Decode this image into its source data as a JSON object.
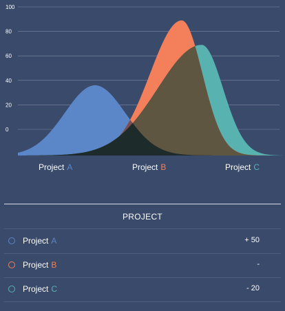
{
  "chart": {
    "y_ticks": [
      "100",
      "80",
      "60",
      "40",
      "20",
      "0"
    ],
    "series": [
      {
        "name": "Project",
        "letter": "A",
        "color": "#5b86c7",
        "peak_value": 36
      },
      {
        "name": "Project",
        "letter": "B",
        "color": "#f47f5b",
        "peak_value": 89
      },
      {
        "name": "Project",
        "letter": "C",
        "color": "#58b3b0",
        "peak_value": 69
      }
    ],
    "overlap_color": "#1f2b2b"
  },
  "chart_data": {
    "type": "area",
    "y_ticks": [
      100,
      80,
      60,
      40,
      20,
      0
    ],
    "ylim": [
      -20,
      100
    ],
    "categories": [
      "Project A",
      "Project B",
      "Project C"
    ],
    "series": [
      {
        "name": "Project A",
        "peak": 36
      },
      {
        "name": "Project B",
        "peak": 89
      },
      {
        "name": "Project C",
        "peak": 69
      }
    ],
    "grid": true
  },
  "table": {
    "title": "PROJECT",
    "rows": [
      {
        "name": "Project",
        "letter": "A",
        "color": "#5b86c7",
        "value": "+ 50"
      },
      {
        "name": "Project",
        "letter": "B",
        "color": "#f47f5b",
        "value": "-"
      },
      {
        "name": "Project",
        "letter": "C",
        "color": "#58b3b0",
        "value": "- 20"
      }
    ]
  }
}
